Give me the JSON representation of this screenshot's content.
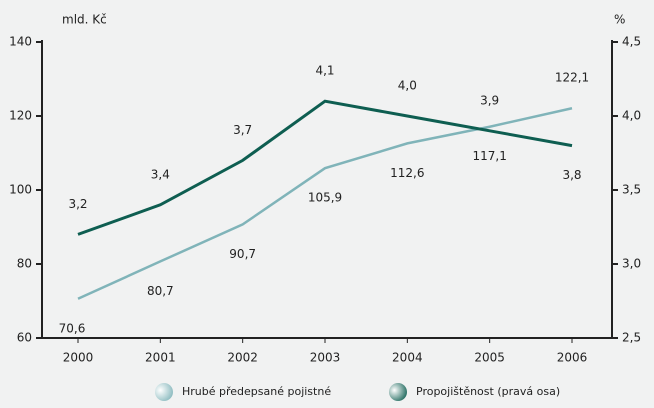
{
  "chart_data": {
    "type": "line",
    "y_label": "mld. Kč",
    "y2_label": "%",
    "categories": [
      "2000",
      "2001",
      "2002",
      "2003",
      "2004",
      "2005",
      "2006"
    ],
    "series": [
      {
        "name": "Hrubé předepsané pojistné",
        "color": "#80b4b9",
        "values": [
          70.6,
          80.7,
          90.7,
          105.9,
          112.6,
          117.1,
          122.1
        ],
        "value_labels": [
          "70,6",
          "80,7",
          "90,7",
          "105,9",
          "112,6",
          "117,1",
          "122,1"
        ]
      },
      {
        "name": "Propojištěnost (pravá osa)",
        "color": "#0e5e51",
        "axis": "y2",
        "values": [
          3.2,
          3.4,
          3.7,
          4.1,
          4.0,
          3.9,
          3.8
        ],
        "value_labels": [
          "3,2",
          "3,4",
          "3,7",
          "4,1",
          "4,0",
          "3,9",
          "3,8"
        ]
      }
    ],
    "ylim": [
      60,
      140
    ],
    "yticks": [
      60,
      80,
      100,
      120,
      140
    ],
    "y2lim": [
      2.5,
      4.5
    ],
    "y2ticks": [
      {
        "value": 2.5,
        "label": "2,5"
      },
      {
        "value": 3.0,
        "label": "3,0"
      },
      {
        "value": 3.5,
        "label": "3,5"
      },
      {
        "value": 4.0,
        "label": "4,0"
      },
      {
        "value": 4.5,
        "label": "4,5"
      }
    ]
  }
}
